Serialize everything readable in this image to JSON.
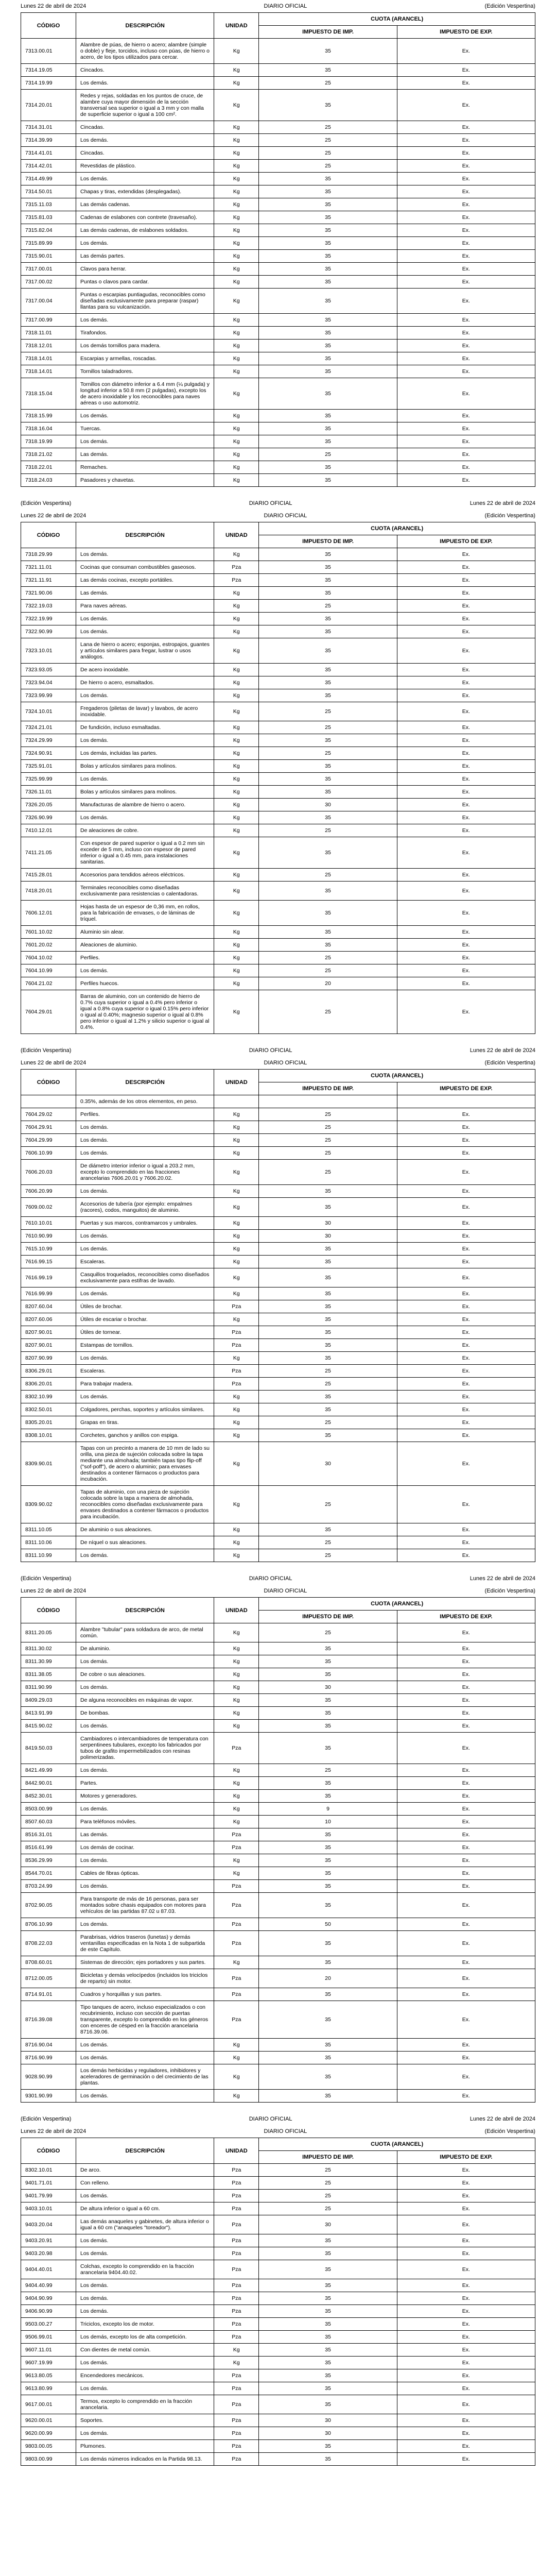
{
  "header": {
    "left": "Lunes 22 de abril de 2024",
    "center": "DIARIO OFICIAL",
    "right": "(Edición Vespertina)"
  },
  "cols": {
    "codigo": "CÓDIGO",
    "descripcion": "DESCRIPCIÓN",
    "unidad": "UNIDAD",
    "cuota": "CUOTA (ARANCEL)",
    "imp": "IMPUESTO DE IMP.",
    "exp": "IMPUESTO DE EXP."
  },
  "t1": [
    [
      "7313.00.01",
      "Alambre de púas, de hierro o acero; alambre (simple o doble) y fleje, torcidos, incluso con púas, de hierro o acero, de los tipos utilizados para cercar.",
      "Kg",
      "35",
      "Ex."
    ],
    [
      "7314.19.05",
      "Cincados.",
      "Kg",
      "35",
      "Ex."
    ],
    [
      "7314.19.99",
      "Los demás.",
      "Kg",
      "25",
      "Ex."
    ],
    [
      "7314.20.01",
      "Redes y rejas, soldadas en los puntos de cruce, de alambre cuya mayor dimensión de la sección transversal sea superior o igual a 3 mm y con malla de superficie superior o igual a 100 cm².",
      "Kg",
      "35",
      "Ex."
    ],
    [
      "7314.31.01",
      "Cincadas.",
      "Kg",
      "25",
      "Ex."
    ],
    [
      "7314.39.99",
      "Los demás.",
      "Kg",
      "25",
      "Ex."
    ],
    [
      "7314.41.01",
      "Cincadas.",
      "Kg",
      "25",
      "Ex."
    ],
    [
      "7314.42.01",
      "Revestidas de plástico.",
      "Kg",
      "25",
      "Ex."
    ],
    [
      "7314.49.99",
      "Los demás.",
      "Kg",
      "35",
      "Ex."
    ],
    [
      "7314.50.01",
      "Chapas y tiras, extendidas (desplegadas).",
      "Kg",
      "35",
      "Ex."
    ],
    [
      "7315.11.03",
      "Las demás cadenas.",
      "Kg",
      "35",
      "Ex."
    ],
    [
      "7315.81.03",
      "Cadenas de eslabones con contrete (travesaño).",
      "Kg",
      "35",
      "Ex."
    ],
    [
      "7315.82.04",
      "Las demás cadenas, de eslabones soldados.",
      "Kg",
      "35",
      "Ex."
    ],
    [
      "7315.89.99",
      "Los demás.",
      "Kg",
      "35",
      "Ex."
    ],
    [
      "7315.90.01",
      "Las demás partes.",
      "Kg",
      "35",
      "Ex."
    ],
    [
      "7317.00.01",
      "Clavos para herrar.",
      "Kg",
      "35",
      "Ex."
    ],
    [
      "7317.00.02",
      "Puntas o clavos para cardar.",
      "Kg",
      "35",
      "Ex."
    ],
    [
      "7317.00.04",
      "Puntas o escarpias puntiagudas, reconocibles como diseñadas exclusivamente para preparar (raspar) llantas para su vulcanización.",
      "Kg",
      "35",
      "Ex."
    ],
    [
      "7317.00.99",
      "Los demás.",
      "Kg",
      "35",
      "Ex."
    ],
    [
      "7318.11.01",
      "Tirafondos.",
      "Kg",
      "35",
      "Ex."
    ],
    [
      "7318.12.01",
      "Los demás tornillos para madera.",
      "Kg",
      "35",
      "Ex."
    ],
    [
      "7318.14.01",
      "Escarpias y armellas, roscadas.",
      "Kg",
      "35",
      "Ex."
    ],
    [
      "7318.14.01",
      "Tornillos taladradores.",
      "Kg",
      "35",
      "Ex."
    ],
    [
      "7318.15.04",
      "Tornillos con diámetro inferior a 6.4 mm (¼ pulgada) y longitud inferior a 50.8 mm (2 pulgadas), excepto los de acero inoxidable y los reconocibles para naves aéreas o uso automotriz.",
      "Kg",
      "35",
      "Ex."
    ],
    [
      "7318.15.99",
      "Los demás.",
      "Kg",
      "35",
      "Ex."
    ],
    [
      "7318.16.04",
      "Tuercas.",
      "Kg",
      "35",
      "Ex."
    ],
    [
      "7318.19.99",
      "Los demás.",
      "Kg",
      "35",
      "Ex."
    ],
    [
      "7318.21.02",
      "Las demás.",
      "Kg",
      "25",
      "Ex."
    ],
    [
      "7318.22.01",
      "Remaches.",
      "Kg",
      "35",
      "Ex."
    ],
    [
      "7318.24.03",
      "Pasadores y chavetas.",
      "Kg",
      "35",
      "Ex."
    ]
  ],
  "t2": [
    [
      "7318.29.99",
      "Los demás.",
      "Kg",
      "35",
      "Ex."
    ],
    [
      "7321.11.01",
      "Cocinas que consuman combustibles gaseosos.",
      "Pza",
      "35",
      "Ex."
    ],
    [
      "7321.11.91",
      "Las demás cocinas, excepto portátiles.",
      "Pza",
      "35",
      "Ex."
    ],
    [
      "7321.90.06",
      "Las demás.",
      "Kg",
      "35",
      "Ex."
    ],
    [
      "7322.19.03",
      "Para naves aéreas.",
      "Kg",
      "25",
      "Ex."
    ],
    [
      "7322.19.99",
      "Los demás.",
      "Kg",
      "35",
      "Ex."
    ],
    [
      "7322.90.99",
      "Los demás.",
      "Kg",
      "35",
      "Ex."
    ],
    [
      "7323.10.01",
      "Lana de hierro o acero; esponjas, estropajos, guantes y artículos similares para fregar, lustrar o usos análogos.",
      "Kg",
      "35",
      "Ex."
    ],
    [
      "7323.93.05",
      "De acero inoxidable.",
      "Kg",
      "35",
      "Ex."
    ],
    [
      "7323.94.04",
      "De hierro o acero, esmaltados.",
      "Kg",
      "35",
      "Ex."
    ],
    [
      "7323.99.99",
      "Los demás.",
      "Kg",
      "35",
      "Ex."
    ],
    [
      "7324.10.01",
      "Fregaderos (piletas de lavar) y lavabos, de acero inoxidable.",
      "Kg",
      "25",
      "Ex."
    ],
    [
      "7324.21.01",
      "De fundición, incluso esmaltadas.",
      "Kg",
      "25",
      "Ex."
    ],
    [
      "7324.29.99",
      "Los demás.",
      "Kg",
      "35",
      "Ex."
    ],
    [
      "7324.90.91",
      "Los demás, incluidas las partes.",
      "Kg",
      "25",
      "Ex."
    ],
    [
      "7325.91.01",
      "Bolas y artículos similares para molinos.",
      "Kg",
      "35",
      "Ex."
    ],
    [
      "7325.99.99",
      "Los demás.",
      "Kg",
      "35",
      "Ex."
    ],
    [
      "7326.11.01",
      "Bolas y artículos similares para molinos.",
      "Kg",
      "35",
      "Ex."
    ],
    [
      "7326.20.05",
      "Manufacturas de alambre de hierro o acero.",
      "Kg",
      "30",
      "Ex."
    ],
    [
      "7326.90.99",
      "Los demás.",
      "Kg",
      "35",
      "Ex."
    ],
    [
      "7410.12.01",
      "De aleaciones de cobre.",
      "Kg",
      "25",
      "Ex."
    ],
    [
      "7411.21.05",
      "Con espesor de pared superior o igual a 0.2 mm sin exceder de 5 mm, incluso con espesor de pared inferior o igual a 0.45 mm, para instalaciones sanitarias.",
      "Kg",
      "35",
      "Ex."
    ],
    [
      "7415.28.01",
      "Accesorios para tendidos aéreos eléctricos.",
      "Kg",
      "25",
      "Ex."
    ],
    [
      "7418.20.01",
      "Terminales reconocibles como diseñadas exclusivamente para resistencias o calentadoras.",
      "Kg",
      "35",
      "Ex."
    ],
    [
      "7606.12.01",
      "Hojas hasta de un espesor de 0,36 mm, en rollos, para la fabricación de envases, o de láminas de tríquel.",
      "Kg",
      "35",
      "Ex."
    ],
    [
      "7601.10.02",
      "Aluminio sin alear.",
      "Kg",
      "35",
      "Ex."
    ],
    [
      "7601.20.02",
      "Aleaciones de aluminio.",
      "Kg",
      "35",
      "Ex."
    ],
    [
      "7604.10.02",
      "Perfiles.",
      "Kg",
      "25",
      "Ex."
    ],
    [
      "7604.10.99",
      "Los demás.",
      "Kg",
      "25",
      "Ex."
    ],
    [
      "7604.21.02",
      "Perfiles huecos.",
      "Kg",
      "20",
      "Ex."
    ],
    [
      "7604.29.01",
      "Barras de aluminio, con un contenido de hierro de 0.7% cuya superior o igual a 0.4% pero inferior o igual a 0.8% cuya superior o igual 0.15% pero inferior o igual al 0.40%; magnesio superior o igual al 0.8% pero inferior o igual al 1.2% y silicio superior o igual al 0.4%.",
      "Kg",
      "25",
      "Ex."
    ]
  ],
  "t3": [
    [
      "",
      "0.35%, además de los otros elementos, en peso.",
      "",
      "",
      ""
    ],
    [
      "7604.29.02",
      "Perfiles.",
      "Kg",
      "25",
      "Ex."
    ],
    [
      "7604.29.91",
      "Los demás.",
      "Kg",
      "25",
      "Ex."
    ],
    [
      "7604.29.99",
      "Los demás.",
      "Kg",
      "25",
      "Ex."
    ],
    [
      "7606.10.99",
      "Los demás.",
      "Kg",
      "25",
      "Ex."
    ],
    [
      "7606.20.03",
      "De diámetro interior inferior o igual a 203.2 mm, excepto lo comprendido en las fracciones arancelarias 7606.20.01 y 7606.20.02.",
      "Kg",
      "25",
      "Ex."
    ],
    [
      "7606.20.99",
      "Los demás.",
      "Kg",
      "35",
      "Ex."
    ],
    [
      "7609.00.02",
      "Accesorios de tubería (por ejemplo: empalmes (racores), codos, manguitos) de aluminio.",
      "Kg",
      "35",
      "Ex."
    ],
    [
      "7610.10.01",
      "Puertas y sus marcos, contramarcos y umbrales.",
      "Kg",
      "30",
      "Ex."
    ],
    [
      "7610.90.99",
      "Los demás.",
      "Kg",
      "30",
      "Ex."
    ],
    [
      "7615.10.99",
      "Los demás.",
      "Kg",
      "35",
      "Ex."
    ],
    [
      "7616.99.15",
      "Escaleras.",
      "Kg",
      "35",
      "Ex."
    ],
    [
      "7616.99.19",
      "Casquillos troquelados, reconocibles como diseñados exclusivamente para estifras de lavado.",
      "Kg",
      "35",
      "Ex."
    ],
    [
      "7616.99.99",
      "Los demás.",
      "Kg",
      "35",
      "Ex."
    ],
    [
      "8207.60.04",
      "Útiles de brochar.",
      "Pza",
      "35",
      "Ex."
    ],
    [
      "8207.60.06",
      "Útiles de escariar o brochar.",
      "Kg",
      "35",
      "Ex."
    ],
    [
      "8207.90.01",
      "Útiles de tornear.",
      "Pza",
      "35",
      "Ex."
    ],
    [
      "8207.90.01",
      "Estampas de tornillos.",
      "Pza",
      "35",
      "Ex."
    ],
    [
      "8207.90.99",
      "Los demás.",
      "Kg",
      "35",
      "Ex."
    ],
    [
      "8306.29.01",
      "Escaleras.",
      "Pza",
      "25",
      "Ex."
    ],
    [
      "8306.20.01",
      "Para trabajar madera.",
      "Pza",
      "25",
      "Ex."
    ],
    [
      "8302.10.99",
      "Los demás.",
      "Kg",
      "35",
      "Ex."
    ],
    [
      "8302.50.01",
      "Colgadores, perchas, soportes y artículos similares.",
      "Kg",
      "35",
      "Ex."
    ],
    [
      "8305.20.01",
      "Grapas en tiras.",
      "Kg",
      "25",
      "Ex."
    ],
    [
      "8308.10.01",
      "Corchetes, ganchos y anillos con espiga.",
      "Kg",
      "35",
      "Ex."
    ],
    [
      "8309.90.01",
      "Tapas con un precinto a manera de 10 mm de lado su orilla, una pieza de sujeción colocada sobre la tapa mediante una almohada; también tapas tipo flip-off (\"sof-poff\"), de acero o aluminio; para envases destinados a contener fármacos o productos para incubación.",
      "Kg",
      "30",
      "Ex."
    ],
    [
      "8309.90.02",
      "Tapas de aluminio, con una pieza de sujeción colocada sobre la tapa a manera de almohada, reconocibles como diseñadas exclusivamente para envases destinados a contener fármacos o productos para incubación.",
      "Kg",
      "25",
      "Ex."
    ],
    [
      "8311.10.05",
      "De aluminio o sus aleaciones.",
      "Kg",
      "35",
      "Ex."
    ],
    [
      "8311.10.06",
      "De níquel o sus aleaciones.",
      "Kg",
      "25",
      "Ex."
    ],
    [
      "8311.10.99",
      "Los demás.",
      "Kg",
      "25",
      "Ex."
    ]
  ],
  "t4": [
    [
      "8311.20.05",
      "Alambre \"tubular\" para soldadura de arco, de metal común.",
      "Kg",
      "25",
      "Ex."
    ],
    [
      "8311.30.02",
      "De aluminio.",
      "Kg",
      "35",
      "Ex."
    ],
    [
      "8311.30.99",
      "Los demás.",
      "Kg",
      "35",
      "Ex."
    ],
    [
      "8311.38.05",
      "De cobre o sus aleaciones.",
      "Kg",
      "35",
      "Ex."
    ],
    [
      "8311.90.99",
      "Los demás.",
      "Kg",
      "30",
      "Ex."
    ],
    [
      "8409.29.03",
      "De alguna reconocibles en máquinas de vapor.",
      "Kg",
      "35",
      "Ex."
    ],
    [
      "8413.91.99",
      "De bombas.",
      "Kg",
      "35",
      "Ex."
    ],
    [
      "8415.90.02",
      "Los demás.",
      "Kg",
      "35",
      "Ex."
    ],
    [
      "8419.50.03",
      "Cambiadores o intercambiadores de temperatura con serpentinees tubulares, excepto los fabricados por tubos de grafito impermebilizados con resinas polimerizadas.",
      "Pza",
      "35",
      "Ex."
    ],
    [
      "8421.49.99",
      "Los demás.",
      "Kg",
      "25",
      "Ex."
    ],
    [
      "8442.90.01",
      "Partes.",
      "Kg",
      "35",
      "Ex."
    ],
    [
      "8452.30.01",
      "Motores y generadores.",
      "Kg",
      "35",
      "Ex."
    ],
    [
      "8503.00.99",
      "Los demás.",
      "Kg",
      "9",
      "Ex."
    ],
    [
      "8507.60.03",
      "Para teléfonos móviles.",
      "Kg",
      "10",
      "Ex."
    ],
    [
      "8516.31.01",
      "Las demás.",
      "Pza",
      "35",
      "Ex."
    ],
    [
      "8516.61.99",
      "Los demás de cocinar.",
      "Pza",
      "35",
      "Ex."
    ],
    [
      "8536.29.99",
      "Los demás.",
      "Kg",
      "35",
      "Ex."
    ],
    [
      "8544.70.01",
      "Cables de fibras ópticas.",
      "Kg",
      "35",
      "Ex."
    ],
    [
      "8703.24.99",
      "Los demás.",
      "Pza",
      "35",
      "Ex."
    ],
    [
      "8702.90.05",
      "Para transporte de más de 16 personas, para ser montados sobre chasis equipados con motores para vehículos de las partidas 87.02 u 87.03.",
      "Pza",
      "35",
      "Ex."
    ],
    [
      "8706.10.99",
      "Los demás.",
      "Pza",
      "50",
      "Ex."
    ],
    [
      "8708.22.03",
      "Parabrisas, vidrios traseros (lunetas) y demás ventanillas especificadas en la Nota 1 de subpartida de este Capítulo.",
      "Pza",
      "35",
      "Ex."
    ],
    [
      "8708.60.01",
      "Sistemas de dirección; ejes portadores y sus partes.",
      "Kg",
      "35",
      "Ex."
    ],
    [
      "8712.00.05",
      "Bicicletas y demás velocípedos (incluidos los triciclos de reparto) sin motor.",
      "Pza",
      "20",
      "Ex."
    ],
    [
      "8714.91.01",
      "Cuadros y horquillas y sus partes.",
      "Pza",
      "35",
      "Ex."
    ],
    [
      "8716.39.08",
      "Tipo tanques de acero, incluso especializados o con recubrimiento, incluso con sección de puertas transparente, excepto lo comprendido en los géneros con enceres de césped en la fracción arancelaria 8716.39.06.",
      "Pza",
      "35",
      "Ex."
    ],
    [
      "8716.90.04",
      "Los demás.",
      "Kg",
      "35",
      "Ex."
    ],
    [
      "8716.90.99",
      "Los demás.",
      "Kg",
      "35",
      "Ex."
    ],
    [
      "9028.90.99",
      "Los demás herbicidas y reguladores, inhibidores y aceleradores de germinación o del crecimiento de las plantas.",
      "Kg",
      "35",
      "Ex."
    ],
    [
      "9301.90.99",
      "Los demás.",
      "Kg",
      "35",
      "Ex."
    ]
  ],
  "t5": [
    [
      "8302.10.01",
      "De arco.",
      "Pza",
      "25",
      "Ex."
    ],
    [
      "9401.71.01",
      "Con relleno.",
      "Pza",
      "25",
      "Ex."
    ],
    [
      "9401.79.99",
      "Los demás.",
      "Pza",
      "25",
      "Ex."
    ],
    [
      "9403.10.01",
      "De altura inferior o igual a 60 cm.",
      "Pza",
      "25",
      "Ex."
    ],
    [
      "9403.20.04",
      "Las demás anaqueles y gabinetes, de altura inferior o igual a 60 cm (\"anaqueles \"toreador\").",
      "Pza",
      "30",
      "Ex."
    ],
    [
      "9403.20.91",
      "Los demás.",
      "Pza",
      "35",
      "Ex."
    ],
    [
      "9403.20.98",
      "Los demás.",
      "Pza",
      "35",
      "Ex."
    ],
    [
      "9404.40.01",
      "Colchas, excepto lo comprendido en la fracción arancelaria 9404.40.02.",
      "Pza",
      "35",
      "Ex."
    ],
    [
      "9404.40.99",
      "Los demás.",
      "Pza",
      "35",
      "Ex."
    ],
    [
      "9404.90.99",
      "Los demás.",
      "Pza",
      "35",
      "Ex."
    ],
    [
      "9406.90.99",
      "Los demás.",
      "Pza",
      "35",
      "Ex."
    ],
    [
      "9503.00.27",
      "Triciclos, excepto los de motor.",
      "Pza",
      "35",
      "Ex."
    ],
    [
      "9506.99.01",
      "Los demás, excepto los de alta competición.",
      "Pza",
      "35",
      "Ex."
    ],
    [
      "9607.11.01",
      "Con dientes de metal común.",
      "Kg",
      "35",
      "Ex."
    ],
    [
      "9607.19.99",
      "Los demás.",
      "Kg",
      "35",
      "Ex."
    ],
    [
      "9613.80.05",
      "Encendedores mecánicos.",
      "Pza",
      "35",
      "Ex."
    ],
    [
      "9613.80.99",
      "Los demás.",
      "Pza",
      "35",
      "Ex."
    ],
    [
      "9617.00.01",
      "Termos, excepto lo comprendido en la fracción arancelaria.",
      "Pza",
      "35",
      "Ex."
    ],
    [
      "9620.00.01",
      "Soportes.",
      "Pza",
      "30",
      "Ex."
    ],
    [
      "9620.00.99",
      "Los demás.",
      "Pza",
      "30",
      "Ex."
    ],
    [
      "9803.00.05",
      "Plumones.",
      "Pza",
      "35",
      "Ex."
    ],
    [
      "9803.00.99",
      "Los demás números indicados en la Partida 98.13.",
      "Pza",
      "35",
      "Ex."
    ]
  ]
}
